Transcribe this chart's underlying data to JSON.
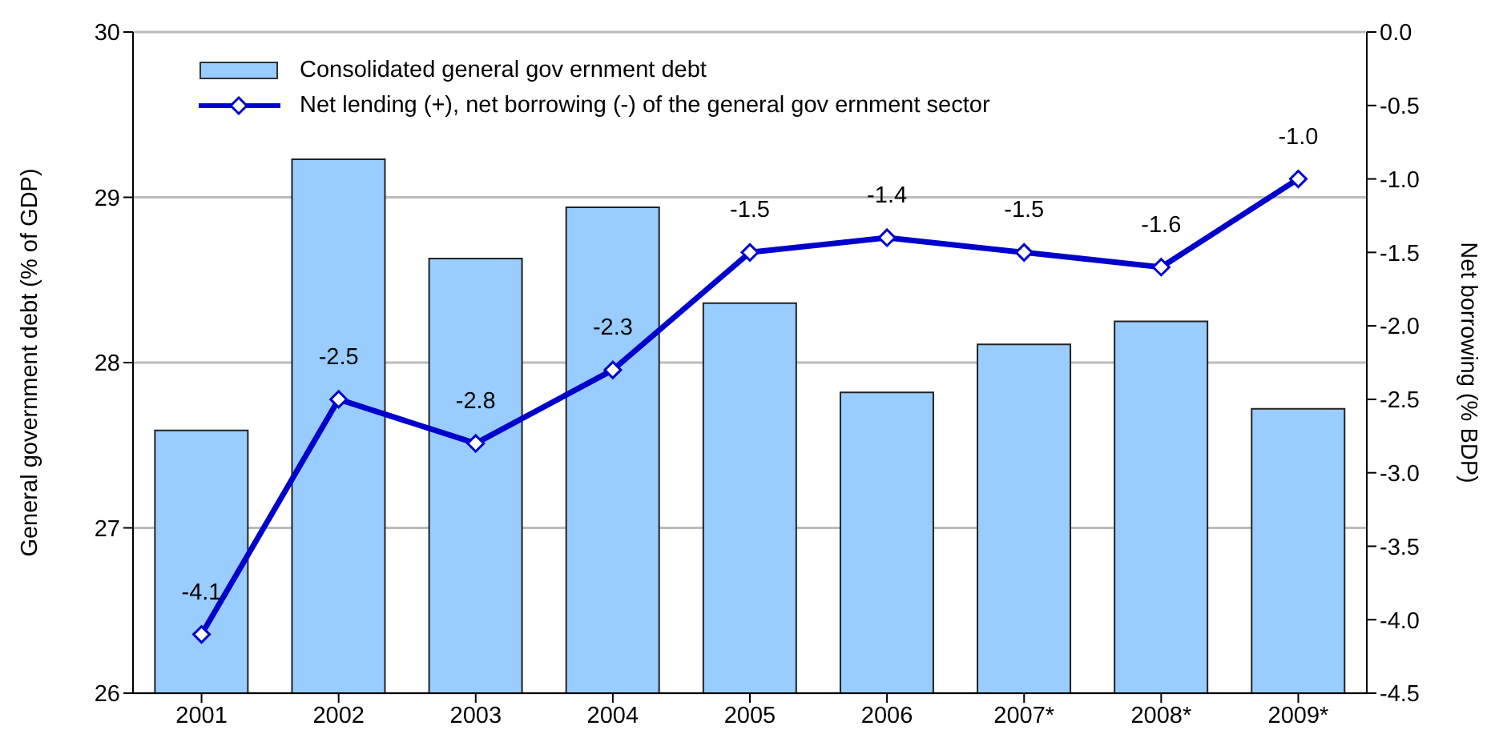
{
  "chart_data": {
    "type": "bar",
    "ylabel": "General government debt (% of GDP)",
    "y2label": "Net borrowing (% BDP)",
    "categories": [
      "2001",
      "2002",
      "2003",
      "2004",
      "2005",
      "2006",
      "2007*",
      "2008*",
      "2009*"
    ],
    "series": [
      {
        "name": "Consolidated general gov ernment debt",
        "color": "#99ccff",
        "values": [
          27.59,
          29.23,
          28.63,
          28.94,
          28.36,
          27.82,
          28.11,
          28.25,
          27.72
        ]
      },
      {
        "name": "Net lending (+), net borrowing (-) of the general gov ernment sector",
        "type": "line",
        "axis": "y2",
        "color": "#0000cc",
        "marker": "diamond",
        "values": [
          -4.1,
          -2.5,
          -2.8,
          -2.3,
          -1.5,
          -1.4,
          -1.5,
          -1.6,
          -1.0
        ],
        "value_labels": [
          "-4.1",
          "-2.5",
          "-2.8",
          "-2.3",
          "-1.5",
          "-1.4",
          "-1.5",
          "-1.6",
          "-1.0"
        ]
      }
    ],
    "ylim": [
      26,
      30
    ],
    "yticks": [
      26,
      27,
      28,
      29,
      30
    ],
    "y2lim": [
      -4.5,
      0
    ],
    "y2ticks": [
      {
        "value": 0,
        "label": "0.0"
      },
      -0.5,
      {
        "value": -1,
        "label": "-1.0"
      },
      -1.5,
      {
        "value": -2,
        "label": "-2.0"
      },
      -2.5,
      {
        "value": -3,
        "label": "-3.0"
      },
      -3.5,
      {
        "value": -4,
        "label": "-4.0"
      },
      -4.5
    ],
    "grid": "y",
    "legend": "top left"
  }
}
